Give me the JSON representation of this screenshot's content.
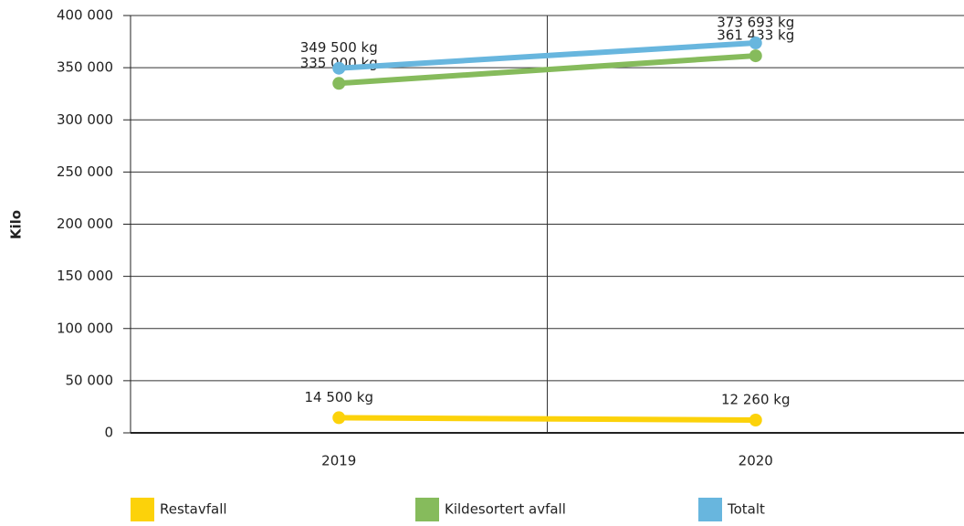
{
  "chart_data": {
    "type": "line",
    "y_label": "Kilo",
    "categories": [
      "2019",
      "2020"
    ],
    "series": [
      {
        "name": "Restavfall",
        "color": "#fcd20a",
        "values": [
          14500,
          12260
        ],
        "value_labels": [
          "14 500 kg",
          "12 260 kg"
        ]
      },
      {
        "name": "Kildesortert avfall",
        "color": "#86bb5c",
        "values": [
          335000,
          361433
        ],
        "value_labels": [
          "335 000 kg",
          "361 433 kg"
        ]
      },
      {
        "name": "Totalt",
        "color": "#68b6de",
        "values": [
          349500,
          373693
        ],
        "value_labels": [
          "349 500 kg",
          "373 693 kg"
        ]
      }
    ],
    "ylim": [
      0,
      400000
    ],
    "yticks": [
      0,
      {
        "value": 50000,
        "label": "50 000"
      },
      {
        "value": 100000,
        "label": "100 000"
      },
      {
        "value": 150000,
        "label": "150 000"
      },
      {
        "value": 200000,
        "label": "200 000"
      },
      {
        "value": 250000,
        "label": "250 000"
      },
      {
        "value": 300000,
        "label": "300 000"
      },
      {
        "value": 350000,
        "label": "350 000"
      },
      {
        "value": 400000,
        "label": "400 000"
      }
    ],
    "grid": true,
    "legend": "bottom"
  }
}
